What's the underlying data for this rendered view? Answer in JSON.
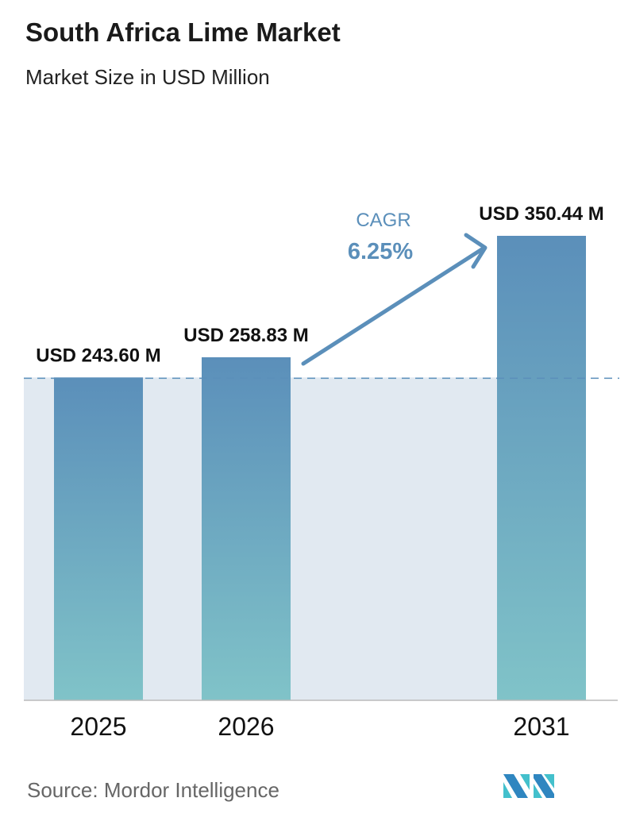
{
  "title": "South Africa Lime Market",
  "subtitle": "Market Size in USD Million",
  "source": "Source:  Mordor Intelligence",
  "logo_text": "Mordor Intelligence",
  "chart_data": {
    "type": "bar",
    "title": "South Africa Lime Market",
    "subtitle": "Market Size in USD Million",
    "categories": [
      "2025",
      "2026",
      "2031"
    ],
    "values": [
      243.6,
      258.83,
      350.44
    ],
    "data_labels": [
      "USD 243.60 M",
      "USD 258.83 M",
      "USD 350.44 M"
    ],
    "annotation": {
      "label": "CAGR",
      "value": "6.25%",
      "from": "2026",
      "to": "2031"
    },
    "ylim": [
      0,
      350.44
    ],
    "grid": false,
    "reference_line": 243.6,
    "colors": {
      "bar_top": "#5b8fba",
      "bar_bottom": "#80c3c8",
      "shade": "#e1e9f1",
      "cagr": "#5b8fba",
      "dash": "#5b8fba"
    }
  }
}
